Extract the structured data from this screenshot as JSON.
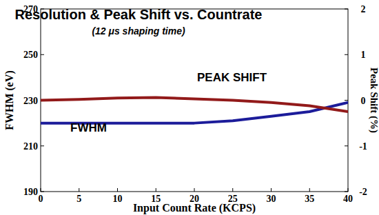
{
  "chart_data": {
    "type": "line",
    "title": "Resolution & Peak Shift vs. Countrate",
    "subtitle": "(12 μs shaping time)",
    "x_label": "Input Count Rate (KCPS)",
    "y_label": "FWHM (eV)",
    "y2_label": "Peak Shift (%)",
    "x": [
      0,
      5,
      10,
      15,
      20,
      25,
      30,
      35,
      40
    ],
    "series": [
      {
        "name": "FWHM",
        "color": "#1c1c9a",
        "values": [
          220,
          220,
          220,
          220,
          220,
          221,
          223,
          225,
          229
        ]
      },
      {
        "name": "PEAK SHIFT",
        "color": "#921a1a",
        "axis": "y2",
        "values": [
          0,
          0.02,
          0.05,
          0.06,
          0.03,
          0,
          -0.05,
          -0.12,
          -0.25
        ]
      }
    ],
    "xlim": [
      0,
      40
    ],
    "xticks": [
      0,
      5,
      10,
      15,
      20,
      25,
      30,
      35,
      40
    ],
    "ylim": [
      190,
      270
    ],
    "yticks": [
      190,
      210,
      230,
      250,
      270
    ],
    "y2lim": [
      -2,
      2
    ],
    "y2ticks": [
      -2,
      -1,
      0,
      1,
      2
    ],
    "grid": false
  }
}
